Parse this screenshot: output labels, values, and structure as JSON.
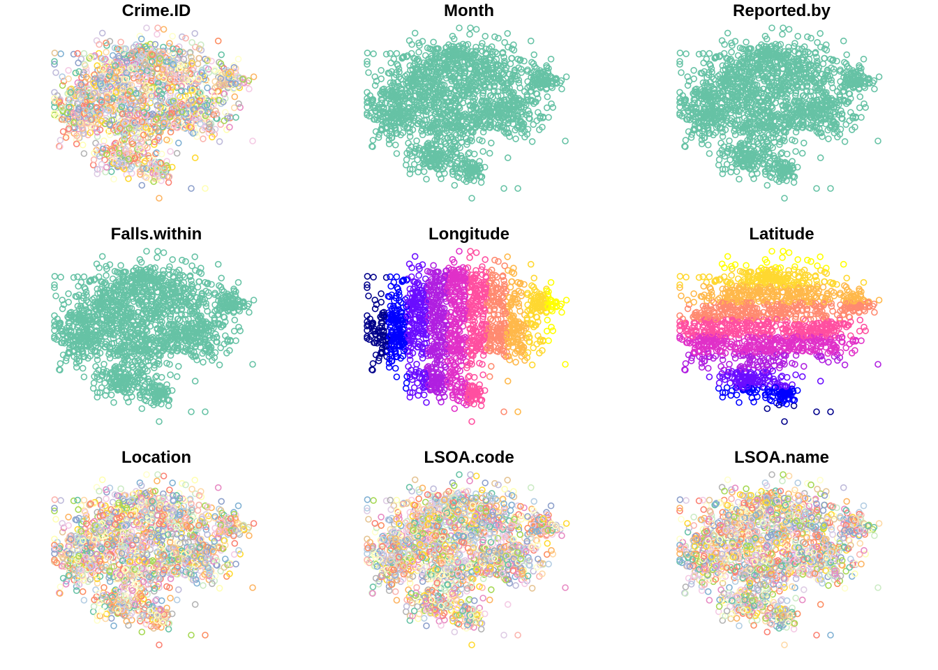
{
  "figure": {
    "layout": "3x3 panel grid of point maps",
    "marker": "open circle"
  },
  "palettes": {
    "single": [
      "#66C2A5"
    ],
    "pastel": [
      "#66C2A5",
      "#FC8D62",
      "#8DA0CB",
      "#E78AC3",
      "#A6D854",
      "#FFD92F",
      "#E5C494",
      "#B3B3B3",
      "#FBB4AE",
      "#B3CDE3",
      "#CCEBC5",
      "#DECBE4",
      "#FED9A6",
      "#FFFFCC",
      "#F4CAE4",
      "#80B1D3",
      "#FDB462",
      "#BEBADA",
      "#FB8072",
      "#FFFFB3"
    ],
    "sequential": [
      "#00008B",
      "#0000FF",
      "#6A0DFF",
      "#B01FE0",
      "#E030C8",
      "#FF4FA0",
      "#FF8A70",
      "#FFB84A",
      "#FFD830",
      "#FFFF00"
    ]
  },
  "chart_data": [
    {
      "type": "scatter",
      "title": "Crime.ID",
      "color_mode": "categorical",
      "palette": "pastel"
    },
    {
      "type": "scatter",
      "title": "Month",
      "color_mode": "single",
      "palette": "single"
    },
    {
      "type": "scatter",
      "title": "Reported.by",
      "color_mode": "single",
      "palette": "single"
    },
    {
      "type": "scatter",
      "title": "Falls.within",
      "color_mode": "single",
      "palette": "single"
    },
    {
      "type": "scatter",
      "title": "Longitude",
      "color_mode": "gradient-x",
      "palette": "sequential"
    },
    {
      "type": "scatter",
      "title": "Latitude",
      "color_mode": "gradient-y",
      "palette": "sequential"
    },
    {
      "type": "scatter",
      "title": "Location",
      "color_mode": "categorical",
      "palette": "pastel"
    },
    {
      "type": "scatter",
      "title": "LSOA.code",
      "color_mode": "categorical",
      "palette": "pastel"
    },
    {
      "type": "scatter",
      "title": "LSOA.name",
      "color_mode": "categorical",
      "palette": "pastel"
    }
  ]
}
